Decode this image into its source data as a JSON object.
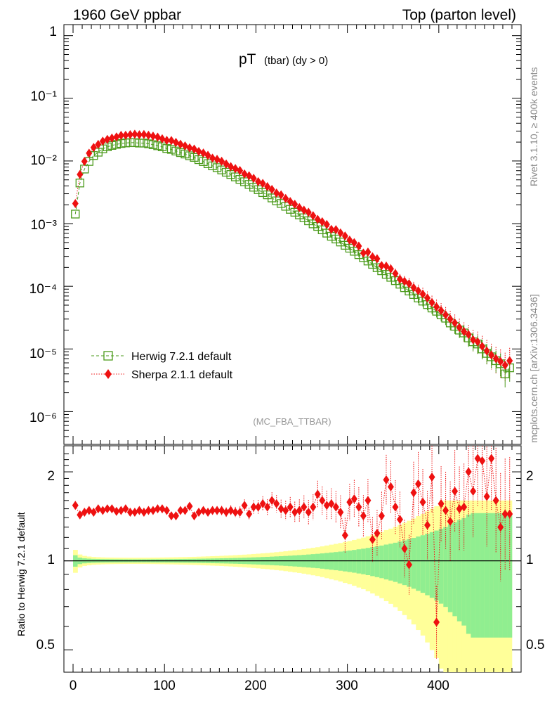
{
  "header": {
    "left": "1960 GeV ppbar",
    "right": "Top (parton level)"
  },
  "side": {
    "rivet": "Rivet 3.1.10, ≥ 400k events",
    "mcplots": "mcplots.cern.ch [arXiv:1306.3436]"
  },
  "ratio_axis_label": "Ratio to Herwig 7.2.1 default",
  "colors": {
    "herwig": "#4a9a1a",
    "sherpa": "#ee1111",
    "band_inner": "#90ee90",
    "band_outer": "#ffff99"
  },
  "chart_data": {
    "type": "scatter",
    "title_main": "pT",
    "title_sub": "(tbar) (dy > 0)",
    "analysis_tag": "(MC_FBA_TTBAR)",
    "xlim": [
      -10,
      490
    ],
    "x_ticks": [
      0,
      100,
      200,
      300,
      400
    ],
    "main_y": {
      "scale": "log",
      "ylim": [
        3e-07,
        1.5
      ],
      "tick_labels": [
        "1",
        "10⁻¹",
        "10⁻²",
        "10⁻³",
        "10⁻⁴",
        "10⁻⁵",
        "10⁻⁶"
      ]
    },
    "ratio_y": {
      "scale": "log",
      "ylim": [
        0.42,
        2.45
      ],
      "tick_labels": [
        "2",
        "1",
        "0.5"
      ]
    },
    "x": [
      2.5,
      7.5,
      12.5,
      17.5,
      22.5,
      27.5,
      32.5,
      37.5,
      42.5,
      47.5,
      52.5,
      57.5,
      62.5,
      67.5,
      72.5,
      77.5,
      82.5,
      87.5,
      92.5,
      97.5,
      102.5,
      107.5,
      112.5,
      117.5,
      122.5,
      127.5,
      132.5,
      137.5,
      142.5,
      147.5,
      152.5,
      157.5,
      162.5,
      167.5,
      172.5,
      177.5,
      182.5,
      187.5,
      192.5,
      197.5,
      202.5,
      207.5,
      212.5,
      217.5,
      222.5,
      227.5,
      232.5,
      237.5,
      242.5,
      247.5,
      252.5,
      257.5,
      262.5,
      267.5,
      272.5,
      277.5,
      282.5,
      287.5,
      292.5,
      297.5,
      302.5,
      307.5,
      312.5,
      317.5,
      322.5,
      327.5,
      332.5,
      337.5,
      342.5,
      347.5,
      352.5,
      357.5,
      362.5,
      367.5,
      372.5,
      377.5,
      382.5,
      387.5,
      392.5,
      397.5,
      402.5,
      407.5,
      412.5,
      417.5,
      422.5,
      427.5,
      432.5,
      437.5,
      442.5,
      447.5,
      452.5,
      457.5,
      462.5,
      467.5,
      472.5,
      477.5
    ],
    "series": [
      {
        "name": "Herwig 7.2.1 default",
        "marker": "open-square",
        "line": "dashed",
        "values": [
          0.00142,
          0.00445,
          0.00743,
          0.00982,
          0.0122,
          0.0138,
          0.0156,
          0.0168,
          0.0177,
          0.0184,
          0.019,
          0.0194,
          0.0196,
          0.0196,
          0.0193,
          0.0193,
          0.0188,
          0.0182,
          0.0175,
          0.0168,
          0.0158,
          0.0153,
          0.0144,
          0.0136,
          0.0129,
          0.0121,
          0.0114,
          0.0105,
          0.00977,
          0.00904,
          0.00835,
          0.00782,
          0.00719,
          0.00661,
          0.00608,
          0.00557,
          0.00508,
          0.00466,
          0.00422,
          0.00381,
          0.00348,
          0.00313,
          0.00288,
          0.00257,
          0.00231,
          0.0021,
          0.00189,
          0.00169,
          0.00152,
          0.00138,
          0.00124,
          0.00111,
          0.000991,
          0.000902,
          0.000796,
          0.000705,
          0.000628,
          0.000568,
          0.000509,
          0.000451,
          0.000405,
          0.000362,
          0.00032,
          0.000287,
          0.000253,
          0.000224,
          0.000198,
          0.000177,
          0.000155,
          0.000139,
          0.000123,
          0.000108,
          9.5e-05,
          8.4e-05,
          7.4e-05,
          6.5e-05,
          5.8e-05,
          5.1e-05,
          4.5e-05,
          4e-05,
          3.5e-05,
          3.1e-05,
          2.6e-05,
          2.3e-05,
          2e-05,
          1.8e-05,
          1.5e-05,
          1.3e-05,
          1.2e-05,
          1e-05,
          8.5e-06,
          7.5e-06,
          6.5e-06,
          5.8e-06,
          4e-06,
          5e-06
        ]
      },
      {
        "name": "Sherpa 2.1.1 default",
        "marker": "filled-diamond",
        "line": "dotted",
        "values": [
          0.00209,
          0.00608,
          0.00984,
          0.0133,
          0.0164,
          0.0184,
          0.0207,
          0.0221,
          0.0232,
          0.0242,
          0.0256,
          0.0257,
          0.0263,
          0.0267,
          0.0262,
          0.0265,
          0.0257,
          0.0249,
          0.024,
          0.0226,
          0.0213,
          0.0212,
          0.0198,
          0.0185,
          0.0174,
          0.0162,
          0.0155,
          0.0142,
          0.0134,
          0.0123,
          0.0111,
          0.0106,
          0.00989,
          0.00895,
          0.00812,
          0.00755,
          0.00705,
          0.00621,
          0.0058,
          0.00529,
          0.00468,
          0.00438,
          0.0039,
          0.00352,
          0.00308,
          0.00288,
          0.00252,
          0.00225,
          0.00204,
          0.0018,
          0.00164,
          0.00152,
          0.00134,
          0.00117,
          0.00107,
          0.000969,
          0.000809,
          0.000801,
          0.000711,
          0.000635,
          0.000545,
          0.000497,
          0.000438,
          0.000339,
          0.000352,
          0.000295,
          0.000275,
          0.000214,
          0.00021,
          0.00019,
          0.00016,
          0.00013,
          0.00012,
          0.00011,
          9.5e-05,
          8.5e-05,
          7.5e-05,
          6.5e-05,
          5.5e-05,
          4.7e-05,
          4.1e-05,
          3.5e-05,
          3e-05,
          2.6e-05,
          2.2e-05,
          1.9e-05,
          1.7e-05,
          1.4e-05,
          1.3e-05,
          1.1e-05,
          9.3e-06,
          8e-06,
          7e-06,
          6.3e-06,
          5.5e-06,
          6.5e-06
        ]
      }
    ],
    "ratio_values": [
      1.54,
      1.43,
      1.46,
      1.48,
      1.46,
      1.5,
      1.48,
      1.5,
      1.5,
      1.47,
      1.48,
      1.5,
      1.46,
      1.46,
      1.48,
      1.46,
      1.48,
      1.48,
      1.5,
      1.5,
      1.48,
      1.42,
      1.42,
      1.48,
      1.48,
      1.53,
      1.42,
      1.46,
      1.48,
      1.46,
      1.48,
      1.48,
      1.48,
      1.46,
      1.48,
      1.46,
      1.46,
      1.54,
      1.44,
      1.52,
      1.52,
      1.56,
      1.52,
      1.6,
      1.56,
      1.5,
      1.48,
      1.52,
      1.46,
      1.48,
      1.52,
      1.46,
      1.52,
      1.68,
      1.6,
      1.54,
      1.56,
      1.52,
      1.46,
      1.22,
      1.58,
      1.62,
      1.52,
      1.42,
      1.6,
      1.18,
      1.24,
      1.42,
      1.88,
      1.78,
      1.52,
      1.38,
      1.1,
      0.97,
      1.7,
      1.82,
      1.58,
      1.32,
      1.92,
      0.62,
      1.56,
      1.48,
      1.36,
      1.72,
      1.5,
      1.52,
      2.0,
      1.72,
      2.22,
      2.18,
      1.65,
      2.22,
      1.6,
      1.3,
      1.44,
      1.44
    ]
  }
}
